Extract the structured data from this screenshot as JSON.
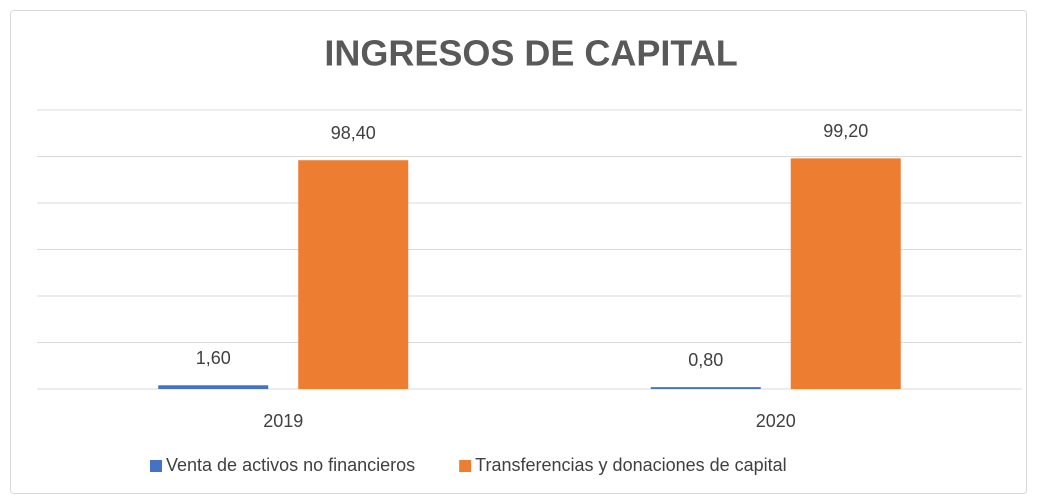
{
  "chart_data": {
    "type": "bar",
    "title": "INGRESOS DE CAPITAL",
    "categories": [
      "2019",
      "2020"
    ],
    "series": [
      {
        "name": "Venta de activos no financieros",
        "color": "#4472c4",
        "values": [
          1.6,
          0.8
        ],
        "value_labels": [
          "1,60",
          "0,80"
        ]
      },
      {
        "name": "Transferencias y donaciones de capital",
        "color": "#ed7d31",
        "values": [
          98.4,
          99.2
        ],
        "value_labels": [
          "98,40",
          "99,20"
        ]
      }
    ],
    "ylim": [
      0,
      120
    ],
    "yticks": [
      0,
      20,
      40,
      60,
      80,
      100,
      120
    ],
    "grid": true,
    "legend": "bottom"
  }
}
